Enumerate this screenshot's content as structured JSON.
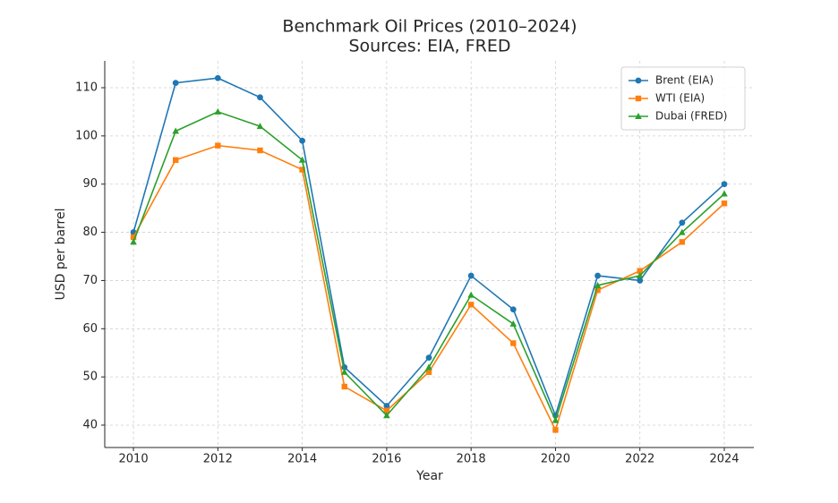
{
  "chart_data": {
    "type": "line",
    "title": "Benchmark Oil Prices (2010–2024)",
    "subtitle": "Sources: EIA, FRED",
    "x_label": "Year",
    "y_label": "USD per barrel",
    "x": [
      2010,
      2011,
      2012,
      2013,
      2014,
      2015,
      2016,
      2017,
      2018,
      2019,
      2020,
      2021,
      2022,
      2023,
      2024
    ],
    "series": [
      {
        "name": "Brent (EIA)",
        "color": "#1f77b4",
        "marker": "circle",
        "values": [
          80,
          111,
          112,
          108,
          99,
          52,
          44,
          54,
          71,
          64,
          42,
          71,
          70,
          82,
          90
        ]
      },
      {
        "name": "WTI (EIA)",
        "color": "#ff7f0e",
        "marker": "square",
        "values": [
          79,
          95,
          98,
          97,
          93,
          48,
          43,
          51,
          65,
          57,
          39,
          68,
          72,
          78,
          86
        ]
      },
      {
        "name": "Dubai (FRED)",
        "color": "#2ca02c",
        "marker": "triangle",
        "values": [
          78,
          101,
          105,
          102,
          95,
          51,
          42,
          52,
          67,
          61,
          41,
          69,
          71,
          80,
          88
        ]
      }
    ],
    "xlim": [
      2009.32,
      2024.7
    ],
    "xticks": [
      2010,
      2012,
      2014,
      2016,
      2018,
      2020,
      2022,
      2024
    ],
    "ylim": [
      35.36,
      115.57
    ],
    "yticks": [
      40,
      50,
      60,
      70,
      80,
      90,
      100,
      110
    ],
    "grid": true,
    "legend": "upper right"
  }
}
